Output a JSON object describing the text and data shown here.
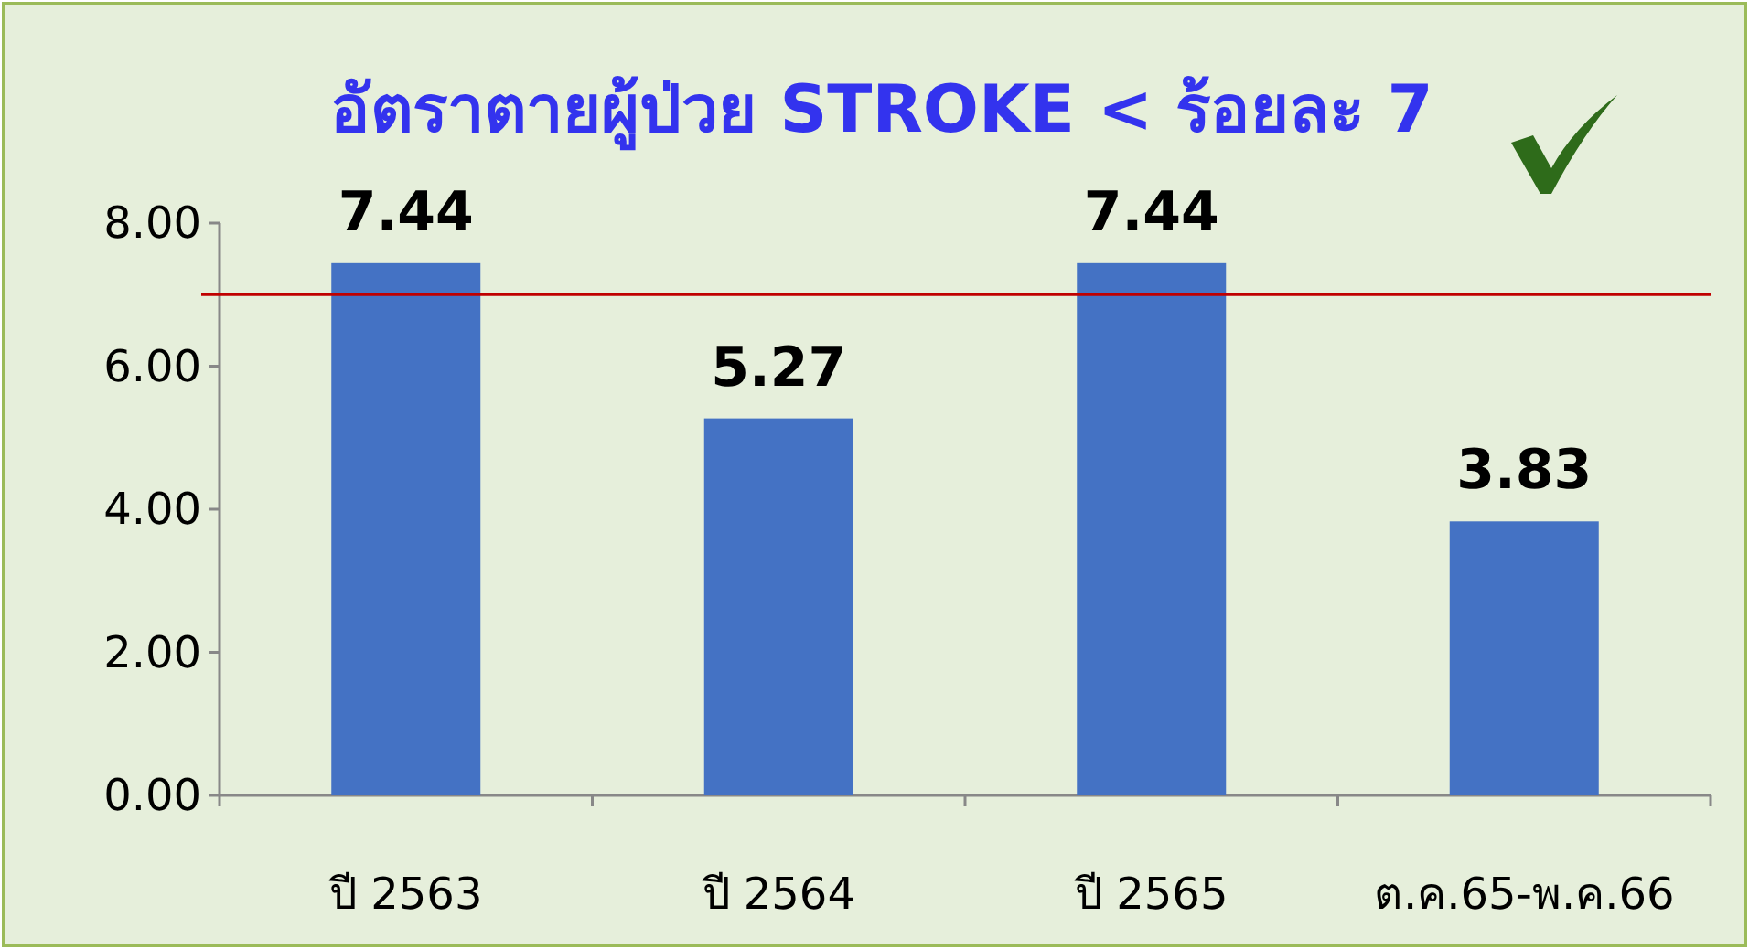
{
  "chart_data": {
    "type": "bar",
    "title": "อัตราตายผู้ป่วย STROKE < ร้อยละ 7",
    "categories": [
      "ปี 2563",
      "ปี 2564",
      "ปี 2565",
      "ต.ค.65-พ.ค.66"
    ],
    "values": [
      7.44,
      5.27,
      7.44,
      3.83
    ],
    "color": "#4472c4",
    "data_labels": true,
    "ylim": [
      0,
      8
    ],
    "yticks": [
      {
        "value": 0,
        "label": "0.00"
      },
      {
        "value": 2,
        "label": "2.00"
      },
      {
        "value": 4,
        "label": "4.00"
      },
      {
        "value": 6,
        "label": "6.00"
      },
      {
        "value": 8,
        "label": "8.00"
      }
    ],
    "ref_lines": [
      {
        "axis": "y",
        "value": 7,
        "color": "#c00000"
      }
    ]
  }
}
